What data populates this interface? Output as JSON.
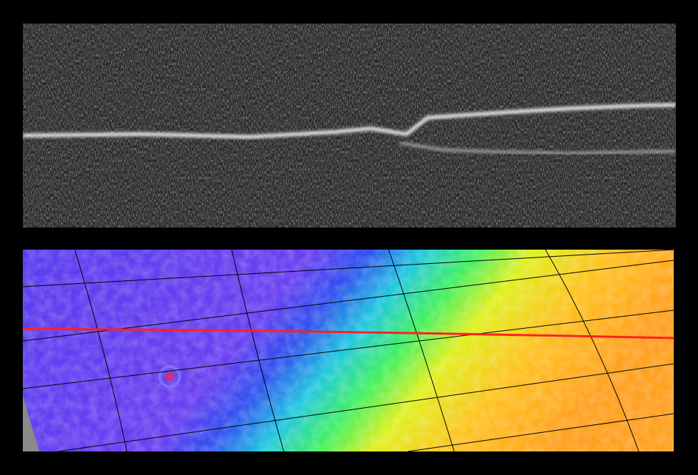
{
  "colors": {
    "background": "#000000",
    "radargram_base": "#2a2a2a",
    "reflector": "#e8e8e8",
    "track_line": "#ff2020",
    "grid_line": "#000000",
    "elevation_low": "#5a3cf0",
    "elevation_mid": "#20e0c0",
    "elevation_high": "#ffb020"
  }
}
